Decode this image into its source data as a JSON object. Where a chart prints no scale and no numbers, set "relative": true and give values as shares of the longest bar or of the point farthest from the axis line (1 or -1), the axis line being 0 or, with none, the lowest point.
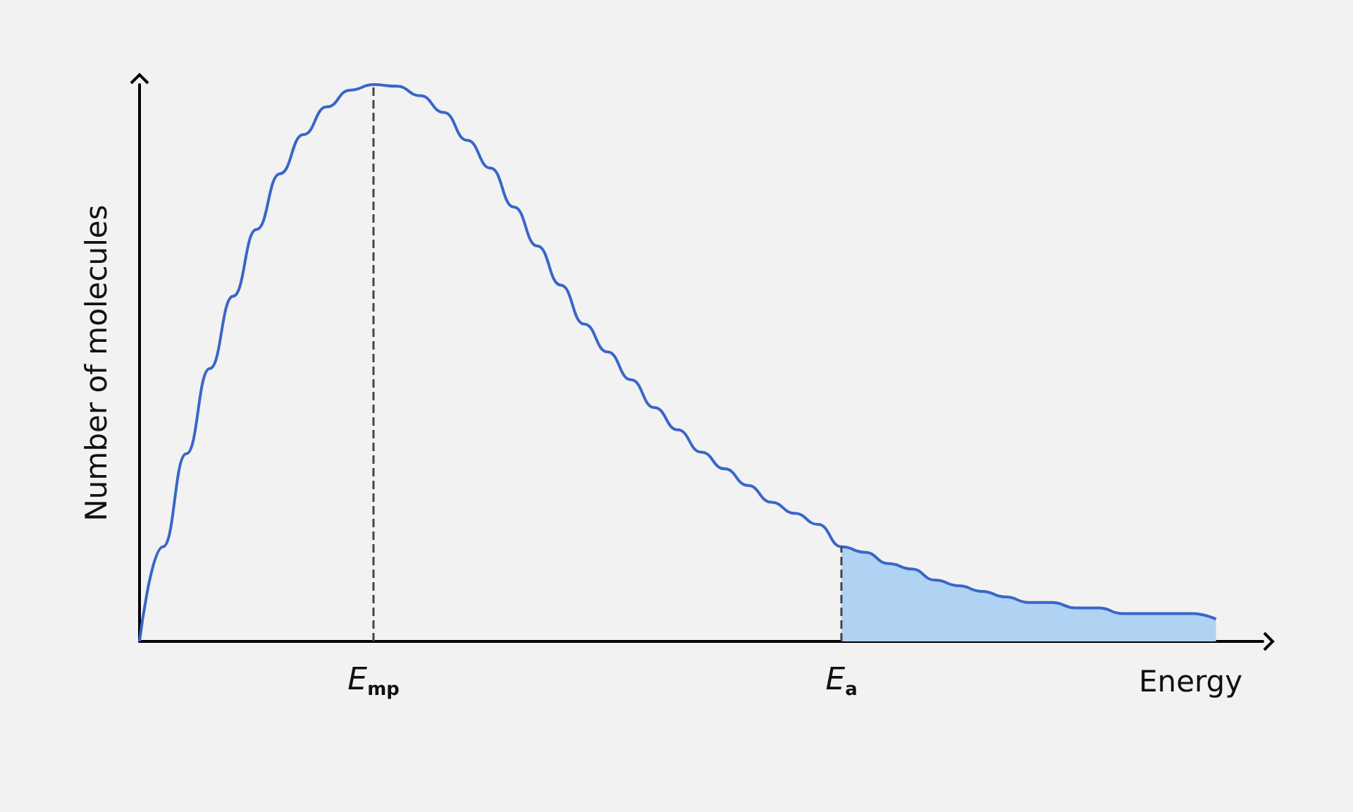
{
  "chart_data": {
    "type": "line",
    "relative": true,
    "xlabel": "Energy",
    "ylabel": "Number of molecules",
    "marker": "none",
    "categories": [
      null,
      null,
      null,
      null,
      null,
      null,
      null,
      null,
      null,
      null,
      "E$_{mp}$",
      null,
      null,
      null,
      null,
      null,
      null,
      null,
      null,
      null,
      null,
      null,
      null,
      null,
      null,
      null,
      null,
      null,
      null,
      null,
      "E$_{a}$",
      null,
      null,
      null,
      null,
      null,
      null,
      null,
      null,
      null,
      null,
      null,
      null,
      null,
      null,
      null,
      null,
      null,
      null
    ],
    "series": [
      {
        "color": "#3a66c8",
        "values": [
          0,
          0.17,
          0.337,
          0.49,
          0.62,
          0.74,
          0.84,
          0.91,
          0.96,
          0.99,
          1,
          0.997,
          0.98,
          0.95,
          0.9,
          0.85,
          0.78,
          0.71,
          0.64,
          0.57,
          0.52,
          0.47,
          0.42,
          0.38,
          0.34,
          0.31,
          0.28,
          0.25,
          0.23,
          0.21,
          0.17,
          0.16,
          0.14,
          0.13,
          0.11,
          0.1,
          0.09,
          0.08,
          0.07,
          0.07,
          0.06,
          0.06,
          0.05,
          0.05,
          0.05,
          0.05,
          0.04,
          null,
          null
        ]
      },
      {
        "type": "area",
        "color": "#b0d3f3",
        "values": [
          null,
          null,
          null,
          null,
          null,
          null,
          null,
          null,
          null,
          null,
          null,
          null,
          null,
          null,
          null,
          null,
          null,
          null,
          null,
          null,
          null,
          null,
          null,
          null,
          null,
          null,
          null,
          null,
          null,
          null,
          0.17,
          0.16,
          0.14,
          0.13,
          0.11,
          0.1,
          0.09,
          0.08,
          0.07,
          0.07,
          0.06,
          0.06,
          0.05,
          0.05,
          0.05,
          0.05,
          0.04,
          null,
          null
        ]
      }
    ],
    "ref_lines": [
      {
        "axis": "x",
        "value": "E$_{mp}$",
        "line_style": "dashed",
        "color": "#444444"
      },
      {
        "axis": "x",
        "value": "E$_{a}$",
        "line_style": "dashed",
        "color": "#444444"
      }
    ]
  }
}
